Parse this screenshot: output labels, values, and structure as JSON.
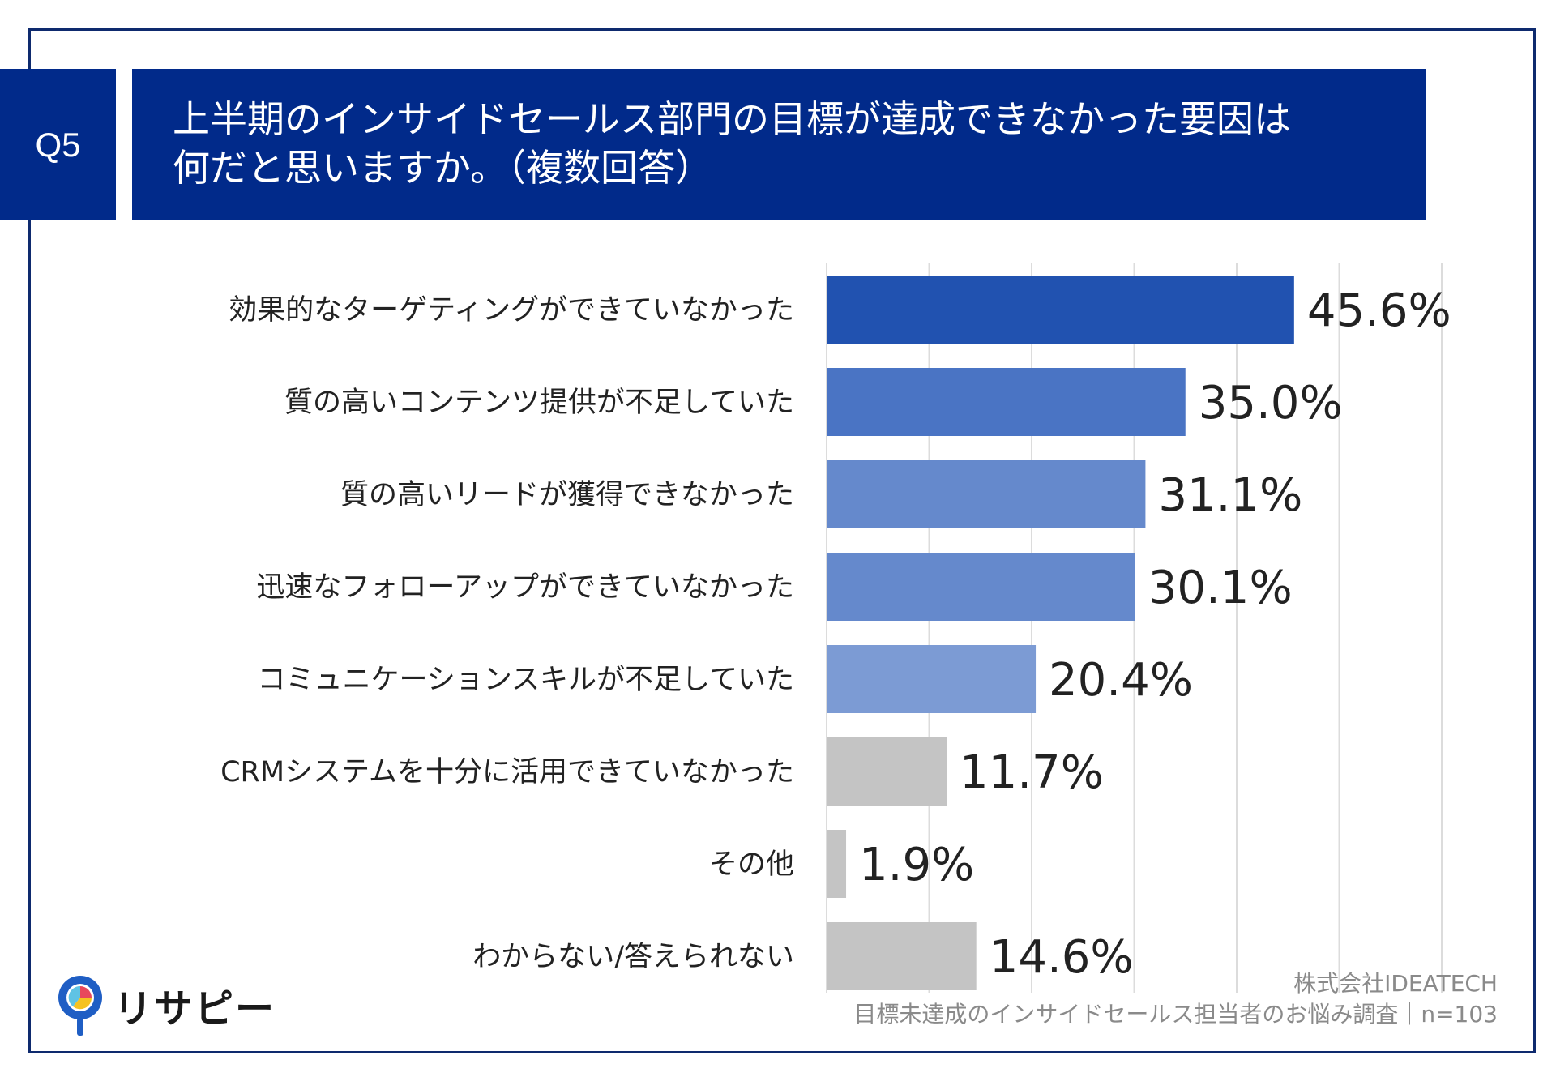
{
  "badge": "Q5",
  "title": {
    "line1": "上半期のインサイドセールス部門の目標が達成できなかった要因は",
    "line2": "何だと思いますか。（複数回答）"
  },
  "chart_data": {
    "type": "bar",
    "orientation": "horizontal",
    "categories": [
      "効果的なターゲティングができていなかった",
      "質の高いコンテンツ提供が不足していた",
      "質の高いリードが獲得できなかった",
      "迅速なフォローアップができていなかった",
      "コミュニケーションスキルが不足していた",
      "CRMシステムを十分に活用できていなかった",
      "その他",
      "わからない/答えられない"
    ],
    "values": [
      45.6,
      35.0,
      31.1,
      30.1,
      20.4,
      11.7,
      1.9,
      14.6
    ],
    "value_labels": [
      "45.6%",
      "35.0%",
      "31.1%",
      "30.1%",
      "20.4%",
      "11.7%",
      "1.9%",
      "14.6%"
    ],
    "colors": [
      "#2152b0",
      "#4a74c4",
      "#6589cc",
      "#6589cc",
      "#7c9bd4",
      "#c4c4c4",
      "#c4c4c4",
      "#c4c4c4"
    ],
    "xlim": [
      0,
      60
    ],
    "grid": true
  },
  "logo": {
    "text": "リサピー",
    "icon": "map-pin-pie-icon"
  },
  "source": {
    "company": "株式会社IDEATECH",
    "survey": "目標未達成のインサイドセールス担当者のお悩み調査｜n=103"
  }
}
